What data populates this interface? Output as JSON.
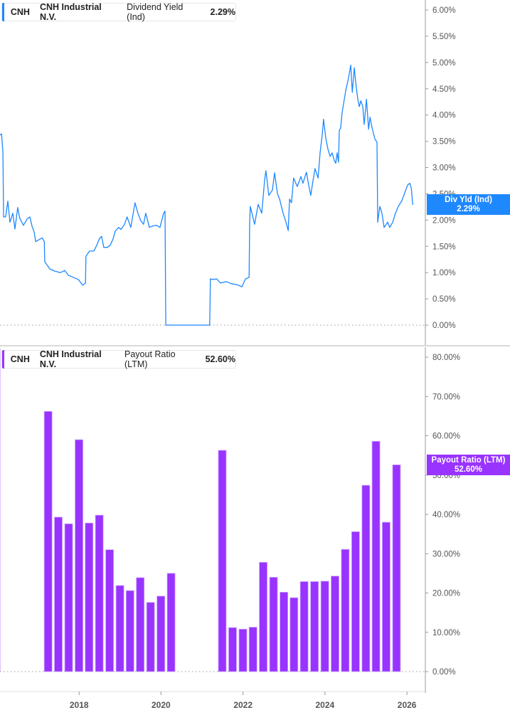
{
  "colors": {
    "yield": "#1e88ff",
    "payout": "#9933ff",
    "axis": "#888888",
    "grid_zero": "#999999"
  },
  "top_legend": {
    "ticker": "CNH",
    "company": "CNH Industrial N.V.",
    "metric": "Dividend Yield (Ind)",
    "value": "2.29%"
  },
  "top_tag": {
    "label": "Div Yld (Ind)",
    "value": "2.29%"
  },
  "bottom_legend": {
    "ticker": "CNH",
    "company": "CNH Industrial N.V.",
    "metric": "Payout Ratio (LTM)",
    "value": "52.60%"
  },
  "bottom_tag": {
    "label": "Payout Ratio (LTM)",
    "value": "52.60%"
  },
  "chart_data": [
    {
      "type": "line",
      "series": [
        {
          "name": "Dividend Yield (Ind)",
          "points": [
            [
              "2016-01-27",
              3.62
            ],
            [
              "2016-02-09",
              3.64
            ],
            [
              "2016-02-22",
              3.3
            ],
            [
              "2016-02-28",
              2.06
            ],
            [
              "2016-03-17",
              2.06
            ],
            [
              "2016-04-06",
              2.36
            ],
            [
              "2016-04-25",
              1.96
            ],
            [
              "2016-05-20",
              2.13
            ],
            [
              "2016-06-08",
              1.83
            ],
            [
              "2016-07-03",
              2.24
            ],
            [
              "2016-07-22",
              2.03
            ],
            [
              "2016-08-23",
              1.9
            ],
            [
              "2016-09-24",
              2.02
            ],
            [
              "2016-10-19",
              2.06
            ],
            [
              "2016-11-08",
              1.88
            ],
            [
              "2016-11-27",
              1.77
            ],
            [
              "2016-12-10",
              1.59
            ],
            [
              "2017-01-10",
              1.63
            ],
            [
              "2017-02-06",
              1.66
            ],
            [
              "2017-02-25",
              1.59
            ],
            [
              "2017-03-01",
              1.21
            ],
            [
              "2017-04-15",
              1.07
            ],
            [
              "2017-05-28",
              1.03
            ],
            [
              "2017-07-18",
              1.0
            ],
            [
              "2017-08-26",
              1.04
            ],
            [
              "2017-09-27",
              0.95
            ],
            [
              "2017-11-10",
              0.91
            ],
            [
              "2017-12-25",
              0.87
            ],
            [
              "2018-02-02",
              0.76
            ],
            [
              "2018-02-27",
              0.8
            ],
            [
              "2018-03-03",
              1.31
            ],
            [
              "2018-04-04",
              1.41
            ],
            [
              "2018-05-12",
              1.41
            ],
            [
              "2018-06-07",
              1.52
            ],
            [
              "2018-07-02",
              1.65
            ],
            [
              "2018-07-20",
              1.69
            ],
            [
              "2018-08-09",
              1.48
            ],
            [
              "2018-09-10",
              1.48
            ],
            [
              "2018-10-05",
              1.52
            ],
            [
              "2018-11-01",
              1.65
            ],
            [
              "2018-11-19",
              1.79
            ],
            [
              "2018-12-20",
              1.86
            ],
            [
              "2019-01-09",
              1.82
            ],
            [
              "2019-02-10",
              1.92
            ],
            [
              "2019-03-05",
              2.06
            ],
            [
              "2019-04-07",
              1.86
            ],
            [
              "2019-05-14",
              2.33
            ],
            [
              "2019-06-09",
              2.13
            ],
            [
              "2019-07-04",
              1.99
            ],
            [
              "2019-07-29",
              1.92
            ],
            [
              "2019-08-18",
              2.13
            ],
            [
              "2019-09-19",
              1.86
            ],
            [
              "2019-10-20",
              1.89
            ],
            [
              "2019-11-21",
              1.9
            ],
            [
              "2019-12-23",
              1.86
            ],
            [
              "2020-01-24",
              2.13
            ],
            [
              "2020-02-06",
              2.17
            ],
            [
              "2020-02-13",
              0
            ],
            [
              "2021-03-10",
              0
            ],
            [
              "2021-03-16",
              0.88
            ],
            [
              "2021-04-11",
              0.87
            ],
            [
              "2021-05-13",
              0.88
            ],
            [
              "2021-06-14",
              0.8
            ],
            [
              "2021-08-04",
              0.83
            ],
            [
              "2021-09-17",
              0.79
            ],
            [
              "2021-11-08",
              0.77
            ],
            [
              "2021-12-22",
              0.73
            ],
            [
              "2022-01-23",
              0.88
            ],
            [
              "2022-02-24",
              0.91
            ],
            [
              "2022-03-01",
              1.95
            ],
            [
              "2022-03-07",
              2.26
            ],
            [
              "2022-04-14",
              1.92
            ],
            [
              "2022-05-16",
              2.3
            ],
            [
              "2022-06-17",
              2.13
            ],
            [
              "2022-07-12",
              2.76
            ],
            [
              "2022-07-24",
              2.94
            ],
            [
              "2022-08-19",
              2.47
            ],
            [
              "2022-09-20",
              2.57
            ],
            [
              "2022-10-09",
              2.9
            ],
            [
              "2022-11-04",
              2.5
            ],
            [
              "2022-11-23",
              2.4
            ],
            [
              "2022-12-24",
              2.13
            ],
            [
              "2023-01-19",
              1.96
            ],
            [
              "2023-02-08",
              1.8
            ],
            [
              "2023-02-20",
              2.4
            ],
            [
              "2023-03-09",
              2.33
            ],
            [
              "2023-03-28",
              2.8
            ],
            [
              "2023-04-29",
              2.64
            ],
            [
              "2023-06-01",
              2.83
            ],
            [
              "2023-06-19",
              2.7
            ],
            [
              "2023-07-20",
              2.91
            ],
            [
              "2023-08-09",
              2.67
            ],
            [
              "2023-08-28",
              2.47
            ],
            [
              "2023-09-16",
              2.74
            ],
            [
              "2023-10-05",
              2.98
            ],
            [
              "2023-11-01",
              2.8
            ],
            [
              "2023-11-19",
              3.28
            ],
            [
              "2023-12-08",
              3.62
            ],
            [
              "2023-12-20",
              3.92
            ],
            [
              "2024-01-09",
              3.55
            ],
            [
              "2024-01-28",
              3.35
            ],
            [
              "2024-02-16",
              3.21
            ],
            [
              "2024-03-05",
              3.28
            ],
            [
              "2024-03-24",
              3.14
            ],
            [
              "2024-04-06",
              3.08
            ],
            [
              "2024-04-19",
              3.28
            ],
            [
              "2024-05-01",
              3.1
            ],
            [
              "2024-05-08",
              3.71
            ],
            [
              "2024-05-20",
              3.75
            ],
            [
              "2024-06-02",
              4.05
            ],
            [
              "2024-06-16",
              4.23
            ],
            [
              "2024-07-04",
              4.46
            ],
            [
              "2024-07-29",
              4.7
            ],
            [
              "2024-08-18",
              4.95
            ],
            [
              "2024-09-01",
              4.43
            ],
            [
              "2024-09-19",
              4.9
            ],
            [
              "2024-10-01",
              4.63
            ],
            [
              "2024-10-20",
              4.3
            ],
            [
              "2024-11-02",
              4.16
            ],
            [
              "2024-11-16",
              4.27
            ],
            [
              "2024-12-04",
              4.16
            ],
            [
              "2024-12-16",
              3.82
            ],
            [
              "2025-01-05",
              4.3
            ],
            [
              "2025-01-24",
              3.73
            ],
            [
              "2025-02-06",
              3.96
            ],
            [
              "2025-02-25",
              3.75
            ],
            [
              "2025-03-20",
              3.55
            ],
            [
              "2025-04-09",
              3.48
            ],
            [
              "2025-04-15",
              1.96
            ],
            [
              "2025-05-04",
              2.26
            ],
            [
              "2025-05-23",
              2.13
            ],
            [
              "2025-06-11",
              1.86
            ],
            [
              "2025-07-13",
              1.96
            ],
            [
              "2025-08-01",
              1.86
            ],
            [
              "2025-08-27",
              1.96
            ],
            [
              "2025-09-21",
              2.13
            ],
            [
              "2025-10-16",
              2.26
            ],
            [
              "2025-11-17",
              2.37
            ],
            [
              "2025-12-19",
              2.56
            ],
            [
              "2026-01-08",
              2.67
            ],
            [
              "2026-01-27",
              2.7
            ],
            [
              "2026-02-09",
              2.6
            ],
            [
              "2026-02-22",
              2.29
            ]
          ]
        }
      ],
      "ylim": [
        0,
        6
      ],
      "yticks": [
        "0.00%",
        "0.50%",
        "1.00%",
        "1.50%",
        "2.00%",
        "2.50%",
        "3.00%",
        "3.50%",
        "4.00%",
        "4.50%",
        "5.00%",
        "5.50%",
        "6.00%"
      ],
      "xlim": [
        "2016-01-27",
        "2026-06-14"
      ],
      "axis_side": "right"
    },
    {
      "type": "bar",
      "series": [
        {
          "name": "Payout Ratio (LTM)",
          "points": [
            [
              "2017-03-31",
              66.2
            ],
            [
              "2017-06-30",
              39.3
            ],
            [
              "2017-09-30",
              37.6
            ],
            [
              "2017-12-31",
              59.0
            ],
            [
              "2018-03-31",
              37.8
            ],
            [
              "2018-06-30",
              39.8
            ],
            [
              "2018-09-30",
              31.0
            ],
            [
              "2018-12-31",
              21.9
            ],
            [
              "2019-03-31",
              20.6
            ],
            [
              "2019-06-30",
              23.9
            ],
            [
              "2019-09-30",
              17.6
            ],
            [
              "2019-12-31",
              19.2
            ],
            [
              "2020-03-31",
              25.0
            ],
            [
              "2021-06-30",
              56.3
            ],
            [
              "2021-09-30",
              11.2
            ],
            [
              "2021-12-31",
              10.8
            ],
            [
              "2022-03-31",
              11.3
            ],
            [
              "2022-06-30",
              27.8
            ],
            [
              "2022-09-30",
              24.0
            ],
            [
              "2022-12-31",
              20.2
            ],
            [
              "2023-03-31",
              18.8
            ],
            [
              "2023-06-30",
              22.9
            ],
            [
              "2023-09-30",
              22.9
            ],
            [
              "2023-12-31",
              23.0
            ],
            [
              "2024-03-31",
              24.3
            ],
            [
              "2024-06-30",
              31.1
            ],
            [
              "2024-09-30",
              35.6
            ],
            [
              "2024-12-31",
              47.4
            ],
            [
              "2025-03-31",
              58.6
            ],
            [
              "2025-06-30",
              38.0
            ],
            [
              "2025-09-30",
              52.6
            ]
          ]
        }
      ],
      "ylim": [
        0,
        80
      ],
      "yticks": [
        "0.00%",
        "10.00%",
        "20.00%",
        "30.00%",
        "40.00%",
        "50.00%",
        "60.00%",
        "70.00%",
        "80.00%"
      ],
      "xlim": [
        "2016-01-27",
        "2026-06-14"
      ],
      "axis_side": "right"
    }
  ],
  "x_axis": {
    "ticks": [
      {
        "label": "2018",
        "date": "2018-01-01"
      },
      {
        "label": "2020",
        "date": "2020-01-01"
      },
      {
        "label": "2022",
        "date": "2022-01-01"
      },
      {
        "label": "2024",
        "date": "2024-01-01"
      },
      {
        "label": "2026",
        "date": "2026-01-01"
      }
    ]
  }
}
